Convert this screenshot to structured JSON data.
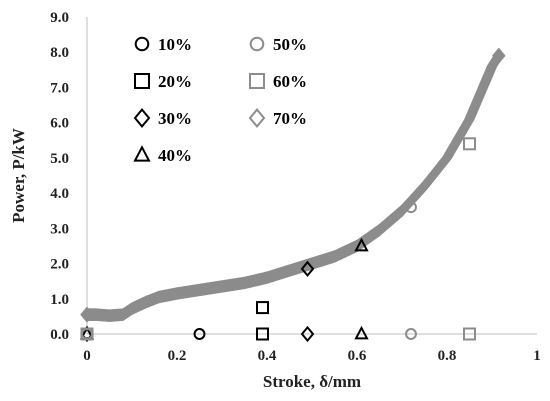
{
  "chart_data": {
    "type": "scatter",
    "title": "",
    "xlabel": "Stroke, δ/mm",
    "ylabel": "Power, P/kW",
    "xlim": [
      0,
      1
    ],
    "ylim": [
      0,
      9
    ],
    "x_ticks": [
      "0",
      "0.2",
      "0.4",
      "0.6",
      "0.8",
      "1"
    ],
    "y_ticks": [
      "0.0",
      "1.0",
      "2.0",
      "3.0",
      "4.0",
      "5.0",
      "6.0",
      "7.0",
      "8.0",
      "9.0"
    ],
    "grid": false,
    "legend": "top-left, 2 columns",
    "colors": {
      "dark": "#000000",
      "gray": "#8c8c8c"
    },
    "series": [
      {
        "name": "10%",
        "marker": "circle",
        "color": "#000000",
        "points": [
          [
            0,
            0
          ],
          [
            0.25,
            0
          ]
        ]
      },
      {
        "name": "20%",
        "marker": "square",
        "color": "#000000",
        "points": [
          [
            0,
            0
          ],
          [
            0.39,
            0
          ],
          [
            0.39,
            0.75
          ]
        ]
      },
      {
        "name": "30%",
        "marker": "diamond",
        "color": "#000000",
        "points": [
          [
            0,
            0
          ],
          [
            0.49,
            0
          ],
          [
            0.49,
            1.85
          ]
        ]
      },
      {
        "name": "40%",
        "marker": "triangle",
        "color": "#000000",
        "points": [
          [
            0,
            0
          ],
          [
            0.61,
            0
          ],
          [
            0.61,
            2.5
          ]
        ]
      },
      {
        "name": "50%",
        "marker": "circle",
        "color": "#8c8c8c",
        "points": [
          [
            0,
            0
          ],
          [
            0.72,
            0
          ],
          [
            0.72,
            3.6
          ]
        ]
      },
      {
        "name": "60%",
        "marker": "square",
        "color": "#8c8c8c",
        "points": [
          [
            0,
            0
          ],
          [
            0.85,
            0
          ],
          [
            0.85,
            5.4
          ]
        ]
      },
      {
        "name": "70%",
        "marker": "diamond",
        "color": "#8c8c8c",
        "points": [
          [
            0,
            0.55
          ],
          [
            0.02,
            0.55
          ],
          [
            0.05,
            0.52
          ],
          [
            0.08,
            0.55
          ],
          [
            0.1,
            0.72
          ],
          [
            0.13,
            0.9
          ],
          [
            0.16,
            1.05
          ],
          [
            0.2,
            1.15
          ],
          [
            0.25,
            1.25
          ],
          [
            0.3,
            1.35
          ],
          [
            0.35,
            1.45
          ],
          [
            0.4,
            1.6
          ],
          [
            0.45,
            1.8
          ],
          [
            0.5,
            2.0
          ],
          [
            0.55,
            2.2
          ],
          [
            0.6,
            2.5
          ],
          [
            0.65,
            2.95
          ],
          [
            0.7,
            3.5
          ],
          [
            0.75,
            4.2
          ],
          [
            0.8,
            5.0
          ],
          [
            0.85,
            6.1
          ],
          [
            0.88,
            7.0
          ],
          [
            0.9,
            7.6
          ],
          [
            0.915,
            7.9
          ]
        ]
      }
    ]
  }
}
